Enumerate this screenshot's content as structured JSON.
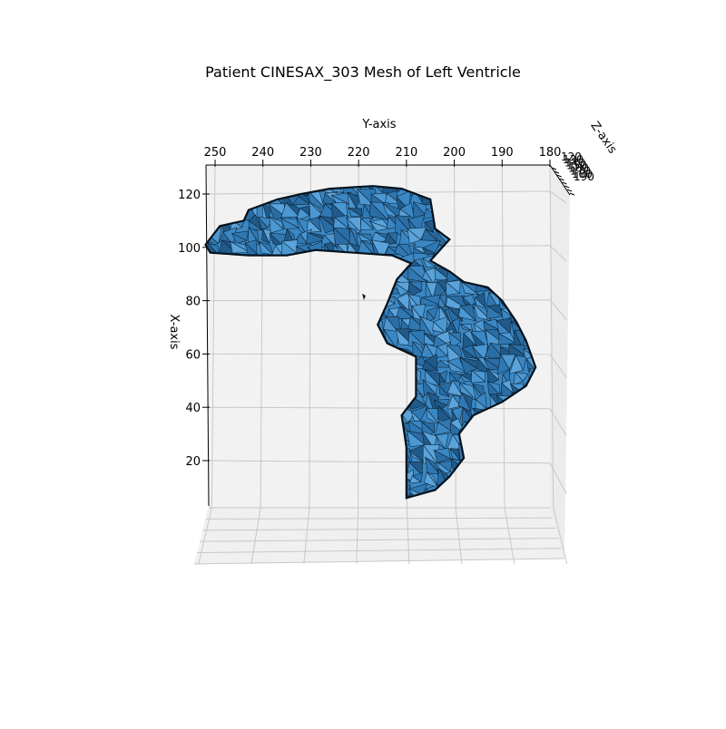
{
  "chart_data": {
    "type": "mesh3d",
    "title": "Patient CINESAX_303 Mesh of Left Ventricle",
    "xlabel": "X-axis",
    "ylabel": "Y-axis",
    "zlabel": "Z-axis",
    "y_ticks": [
      "250",
      "240",
      "230",
      "220",
      "210",
      "200",
      "190",
      "180"
    ],
    "x_ticks": [
      "120",
      "100",
      "80",
      "60",
      "40",
      "20"
    ],
    "z_ticks": [
      "120",
      "130",
      "140",
      "150",
      "160",
      "170",
      "180",
      "190"
    ],
    "ylim": [
      180,
      252
    ],
    "xlim": [
      2,
      125
    ],
    "grid": true,
    "face_color": "#3a87c4",
    "edge_color": "#0d1f2e",
    "pane_color": "#f2f2f2",
    "grid_color": "#c8c8c8",
    "outline": [
      [
        252,
        101
      ],
      [
        249,
        108
      ],
      [
        244,
        110
      ],
      [
        243,
        114
      ],
      [
        237,
        118
      ],
      [
        232,
        120
      ],
      [
        226,
        122
      ],
      [
        217,
        123
      ],
      [
        211,
        122
      ],
      [
        205,
        118
      ],
      [
        204,
        107
      ],
      [
        201,
        103
      ],
      [
        205,
        95
      ],
      [
        201,
        91
      ],
      [
        198,
        87
      ],
      [
        193,
        85
      ],
      [
        190,
        80
      ],
      [
        187,
        72
      ],
      [
        185,
        65
      ],
      [
        183,
        55
      ],
      [
        185,
        48
      ],
      [
        190,
        42
      ],
      [
        196,
        37
      ],
      [
        199,
        30
      ],
      [
        198,
        21
      ],
      [
        201,
        14
      ],
      [
        204,
        9
      ],
      [
        210,
        6
      ],
      [
        210,
        25
      ],
      [
        211,
        37
      ],
      [
        208,
        44
      ],
      [
        208,
        59
      ],
      [
        214,
        64
      ],
      [
        216,
        71
      ],
      [
        214,
        79
      ],
      [
        212,
        88
      ],
      [
        209,
        94
      ],
      [
        213,
        97
      ],
      [
        221,
        98
      ],
      [
        229,
        99
      ],
      [
        235,
        97
      ],
      [
        243,
        97
      ],
      [
        251,
        98
      ]
    ]
  }
}
